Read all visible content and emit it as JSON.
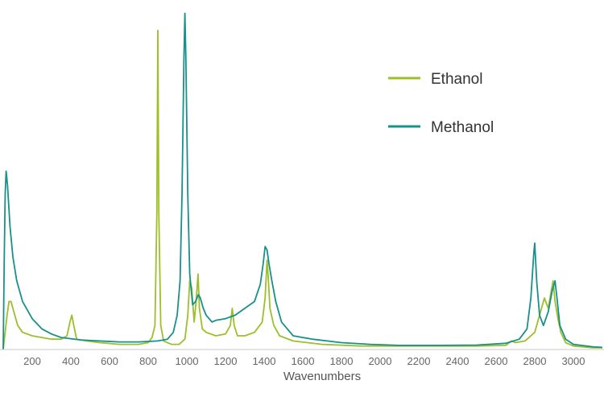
{
  "chart_data": {
    "type": "line",
    "title": "",
    "xlabel": "Wavenumbers",
    "ylabel": "",
    "xlim": [
      50,
      3150
    ],
    "ylim": [
      0,
      1.0
    ],
    "xticks": [
      200,
      400,
      600,
      800,
      1000,
      1200,
      1400,
      1600,
      1800,
      2000,
      2200,
      2400,
      2600,
      2800,
      3000
    ],
    "grid": false,
    "legend_position": "top-right",
    "series": [
      {
        "name": "Ethanol",
        "color": "#9cbf2a",
        "points": [
          [
            50,
            0.0
          ],
          [
            60,
            0.05
          ],
          [
            70,
            0.1
          ],
          [
            80,
            0.14
          ],
          [
            90,
            0.14
          ],
          [
            105,
            0.11
          ],
          [
            125,
            0.07
          ],
          [
            150,
            0.05
          ],
          [
            200,
            0.04
          ],
          [
            250,
            0.035
          ],
          [
            300,
            0.03
          ],
          [
            350,
            0.03
          ],
          [
            380,
            0.04
          ],
          [
            395,
            0.08
          ],
          [
            405,
            0.1
          ],
          [
            415,
            0.07
          ],
          [
            430,
            0.03
          ],
          [
            480,
            0.025
          ],
          [
            550,
            0.02
          ],
          [
            650,
            0.015
          ],
          [
            750,
            0.015
          ],
          [
            800,
            0.02
          ],
          [
            820,
            0.035
          ],
          [
            835,
            0.07
          ],
          [
            845,
            0.4
          ],
          [
            850,
            0.93
          ],
          [
            855,
            0.4
          ],
          [
            865,
            0.07
          ],
          [
            880,
            0.025
          ],
          [
            920,
            0.015
          ],
          [
            960,
            0.015
          ],
          [
            990,
            0.03
          ],
          [
            1005,
            0.1
          ],
          [
            1015,
            0.2
          ],
          [
            1025,
            0.18
          ],
          [
            1038,
            0.08
          ],
          [
            1048,
            0.14
          ],
          [
            1058,
            0.22
          ],
          [
            1065,
            0.12
          ],
          [
            1080,
            0.06
          ],
          [
            1100,
            0.05
          ],
          [
            1150,
            0.04
          ],
          [
            1200,
            0.045
          ],
          [
            1225,
            0.07
          ],
          [
            1235,
            0.12
          ],
          [
            1245,
            0.07
          ],
          [
            1262,
            0.04
          ],
          [
            1300,
            0.04
          ],
          [
            1350,
            0.05
          ],
          [
            1390,
            0.08
          ],
          [
            1405,
            0.15
          ],
          [
            1415,
            0.26
          ],
          [
            1420,
            0.22
          ],
          [
            1430,
            0.12
          ],
          [
            1450,
            0.07
          ],
          [
            1480,
            0.04
          ],
          [
            1550,
            0.025
          ],
          [
            1700,
            0.015
          ],
          [
            1900,
            0.01
          ],
          [
            2100,
            0.01
          ],
          [
            2300,
            0.01
          ],
          [
            2500,
            0.01
          ],
          [
            2650,
            0.012
          ],
          [
            2680,
            0.025
          ],
          [
            2700,
            0.02
          ],
          [
            2750,
            0.025
          ],
          [
            2800,
            0.05
          ],
          [
            2830,
            0.11
          ],
          [
            2850,
            0.15
          ],
          [
            2870,
            0.12
          ],
          [
            2885,
            0.17
          ],
          [
            2895,
            0.2
          ],
          [
            2905,
            0.14
          ],
          [
            2920,
            0.09
          ],
          [
            2935,
            0.05
          ],
          [
            2960,
            0.02
          ],
          [
            3000,
            0.01
          ],
          [
            3100,
            0.005
          ],
          [
            3150,
            0.005
          ]
        ]
      },
      {
        "name": "Methanol",
        "color": "#18908b",
        "points": [
          [
            50,
            0.0
          ],
          [
            55,
            0.25
          ],
          [
            60,
            0.45
          ],
          [
            65,
            0.52
          ],
          [
            72,
            0.48
          ],
          [
            85,
            0.36
          ],
          [
            100,
            0.27
          ],
          [
            120,
            0.2
          ],
          [
            150,
            0.14
          ],
          [
            200,
            0.09
          ],
          [
            250,
            0.06
          ],
          [
            300,
            0.045
          ],
          [
            350,
            0.035
          ],
          [
            450,
            0.028
          ],
          [
            550,
            0.025
          ],
          [
            650,
            0.022
          ],
          [
            750,
            0.022
          ],
          [
            850,
            0.025
          ],
          [
            900,
            0.03
          ],
          [
            930,
            0.05
          ],
          [
            950,
            0.1
          ],
          [
            965,
            0.2
          ],
          [
            975,
            0.45
          ],
          [
            985,
            0.85
          ],
          [
            990,
            0.98
          ],
          [
            995,
            0.85
          ],
          [
            1005,
            0.45
          ],
          [
            1015,
            0.22
          ],
          [
            1030,
            0.13
          ],
          [
            1045,
            0.14
          ],
          [
            1060,
            0.16
          ],
          [
            1070,
            0.15
          ],
          [
            1085,
            0.12
          ],
          [
            1100,
            0.1
          ],
          [
            1115,
            0.09
          ],
          [
            1130,
            0.08
          ],
          [
            1150,
            0.085
          ],
          [
            1200,
            0.09
          ],
          [
            1250,
            0.1
          ],
          [
            1300,
            0.12
          ],
          [
            1350,
            0.14
          ],
          [
            1380,
            0.19
          ],
          [
            1395,
            0.25
          ],
          [
            1405,
            0.3
          ],
          [
            1415,
            0.29
          ],
          [
            1425,
            0.25
          ],
          [
            1440,
            0.2
          ],
          [
            1460,
            0.14
          ],
          [
            1490,
            0.08
          ],
          [
            1550,
            0.04
          ],
          [
            1650,
            0.03
          ],
          [
            1800,
            0.02
          ],
          [
            1950,
            0.015
          ],
          [
            2100,
            0.012
          ],
          [
            2300,
            0.012
          ],
          [
            2500,
            0.013
          ],
          [
            2650,
            0.018
          ],
          [
            2720,
            0.03
          ],
          [
            2760,
            0.06
          ],
          [
            2780,
            0.15
          ],
          [
            2795,
            0.28
          ],
          [
            2800,
            0.31
          ],
          [
            2810,
            0.2
          ],
          [
            2825,
            0.1
          ],
          [
            2845,
            0.07
          ],
          [
            2870,
            0.11
          ],
          [
            2890,
            0.17
          ],
          [
            2905,
            0.2
          ],
          [
            2915,
            0.15
          ],
          [
            2930,
            0.07
          ],
          [
            2960,
            0.03
          ],
          [
            3000,
            0.015
          ],
          [
            3100,
            0.008
          ],
          [
            3150,
            0.006
          ]
        ]
      }
    ]
  }
}
